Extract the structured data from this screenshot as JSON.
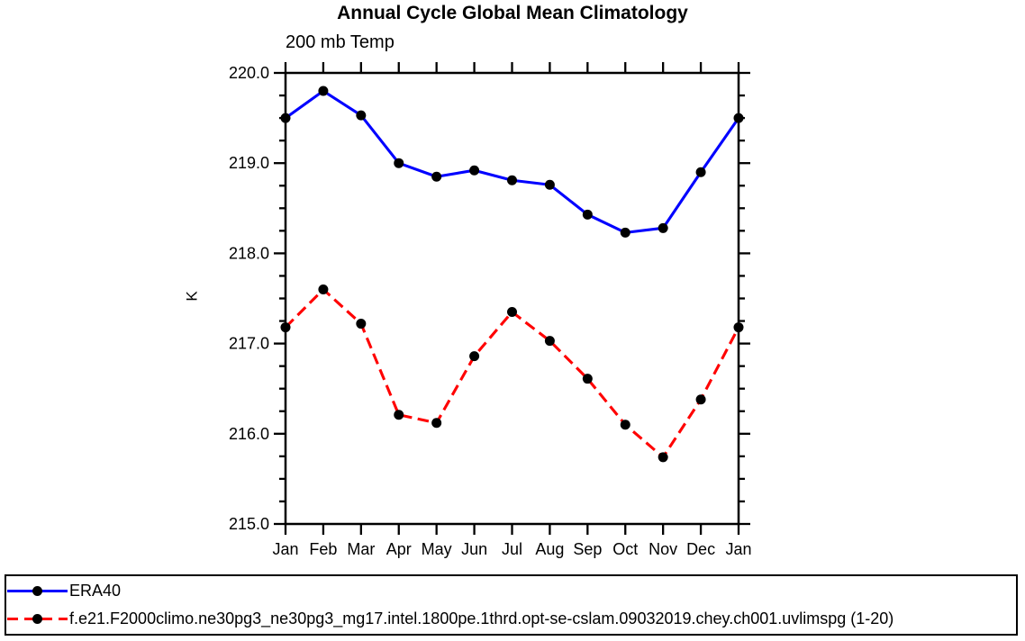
{
  "title": "Annual Cycle Global Mean Climatology",
  "subtitle": "200 mb Temp",
  "ylabel": "K",
  "legend": {
    "items": [
      {
        "label": "ERA40",
        "color": "#0000ff",
        "dash": "solid"
      },
      {
        "label": "f.e21.F2000climo.ne30pg3_ne30pg3_mg17.intel.1800pe.1thrd.opt-se-cslam.09032019.chey.ch001.uvlimspg (1-20)",
        "color": "#ff0000",
        "dash": "dashed"
      }
    ]
  },
  "chart_data": {
    "type": "line",
    "title": "Annual Cycle Global Mean Climatology",
    "subtitle": "200 mb Temp",
    "xlabel": "",
    "ylabel": "K",
    "categories": [
      "Jan",
      "Feb",
      "Mar",
      "Apr",
      "May",
      "Jun",
      "Jul",
      "Aug",
      "Sep",
      "Oct",
      "Nov",
      "Dec",
      "Jan"
    ],
    "ylim": [
      215.0,
      220.0
    ],
    "ytick_values": [
      215,
      216,
      217,
      218,
      219,
      220
    ],
    "ytick_labels": [
      "215.0",
      "216.0",
      "217.0",
      "218.0",
      "219.0",
      "220.0"
    ],
    "ytick_minor_step": 0.25,
    "grid": false,
    "legend_position": "bottom-box",
    "marker": "circle",
    "marker_color": "#000000",
    "series": [
      {
        "name": "ERA40",
        "color": "#0000ff",
        "line_style": "solid",
        "values": [
          219.5,
          219.8,
          219.53,
          219.0,
          218.85,
          218.92,
          218.81,
          218.76,
          218.43,
          218.23,
          218.28,
          218.9,
          219.5
        ]
      },
      {
        "name": "f.e21.F2000climo.ne30pg3_ne30pg3_mg17.intel.1800pe.1thrd.opt-se-cslam.09032019.chey.ch001.uvlimspg (1-20)",
        "color": "#ff0000",
        "line_style": "dashed",
        "values": [
          217.18,
          217.6,
          217.22,
          216.21,
          216.12,
          216.86,
          217.35,
          217.03,
          216.61,
          216.1,
          215.74,
          216.38,
          217.18
        ]
      }
    ]
  }
}
